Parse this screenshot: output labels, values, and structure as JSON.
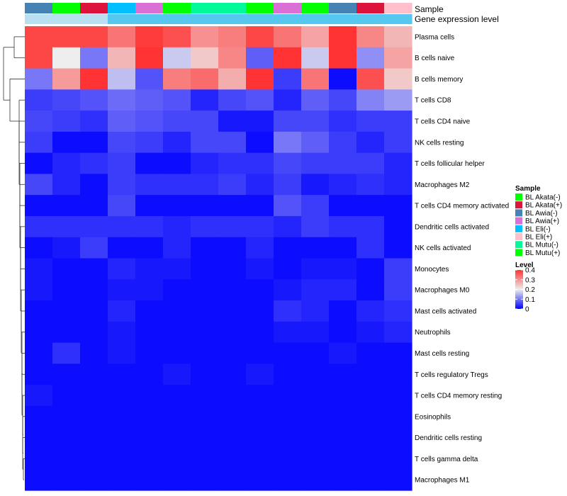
{
  "chart_data": {
    "type": "heatmap",
    "title": "",
    "row_labels": [
      "Plasma cells",
      "B cells naive",
      "B cells memory",
      "T cells CD8",
      "T cells CD4 naive",
      "NK cells resting",
      "T cells follicular helper",
      "Macrophages M2",
      "T cells CD4 memory activated",
      "Dendritic cells activated",
      "NK cells activated",
      "Monocytes",
      "Macrophages M0",
      "Mast cells activated",
      "Neutrophils",
      "Mast cells resting",
      "T cells regulatory  Tregs",
      "T cells CD4 memory resting",
      "Eosinophils",
      "Dendritic cells resting",
      "T cells gamma delta",
      "Macrophages M1"
    ],
    "column_samples": [
      "BL Awia(-)",
      "BL Mutu(+)",
      "BL Akata(+)",
      "BL Eli(-)",
      "BL Awia(+)",
      "BL Mutu(+)",
      "BL Mutu(-)",
      "BL Mutu(-)",
      "BL Mutu(+)",
      "BL Awia(+)",
      "BL Mutu(+)",
      "BL Awia(-)",
      "BL Akata(+)",
      "BL Eli(+)"
    ],
    "column_expression_levels": [
      0.15,
      0.15,
      0.15,
      0.3,
      0.3,
      0.3,
      0.3,
      0.3,
      0.3,
      0.3,
      0.3,
      0.3,
      0.3,
      0.3
    ],
    "values": [
      [
        0.38,
        0.38,
        0.38,
        0.33,
        0.39,
        0.37,
        0.3,
        0.32,
        0.38,
        0.33,
        0.28,
        0.4,
        0.31,
        0.26
      ],
      [
        0.38,
        0.2,
        0.1,
        0.26,
        0.4,
        0.17,
        0.24,
        0.31,
        0.08,
        0.4,
        0.17,
        0.4,
        0.12,
        0.28
      ],
      [
        0.1,
        0.29,
        0.4,
        0.16,
        0.07,
        0.32,
        0.34,
        0.27,
        0.4,
        0.05,
        0.33,
        0.01,
        0.37,
        0.24
      ],
      [
        0.05,
        0.06,
        0.07,
        0.09,
        0.08,
        0.07,
        0.03,
        0.06,
        0.07,
        0.03,
        0.08,
        0.06,
        0.11,
        0.13
      ],
      [
        0.06,
        0.05,
        0.04,
        0.08,
        0.07,
        0.06,
        0.06,
        0.02,
        0.02,
        0.06,
        0.06,
        0.04,
        0.05,
        0.05
      ],
      [
        0.05,
        0.01,
        0.01,
        0.06,
        0.05,
        0.03,
        0.06,
        0.06,
        0.01,
        0.1,
        0.08,
        0.05,
        0.03,
        0.05
      ],
      [
        0.01,
        0.03,
        0.04,
        0.05,
        0.01,
        0.01,
        0.03,
        0.04,
        0.04,
        0.06,
        0.05,
        0.05,
        0.05,
        0.03
      ],
      [
        0.06,
        0.03,
        0.01,
        0.05,
        0.04,
        0.04,
        0.04,
        0.05,
        0.03,
        0.05,
        0.02,
        0.03,
        0.04,
        0.03
      ],
      [
        0.01,
        0.01,
        0.01,
        0.06,
        0.01,
        0.01,
        0.01,
        0.01,
        0.01,
        0.07,
        0.05,
        0.01,
        0.01,
        0.01
      ],
      [
        0.04,
        0.04,
        0.04,
        0.04,
        0.04,
        0.03,
        0.04,
        0.04,
        0.04,
        0.03,
        0.05,
        0.04,
        0.04,
        0.01
      ],
      [
        0.01,
        0.02,
        0.05,
        0.01,
        0.01,
        0.03,
        0.01,
        0.01,
        0.03,
        0.01,
        0.01,
        0.01,
        0.04,
        0.01
      ],
      [
        0.02,
        0.01,
        0.01,
        0.03,
        0.02,
        0.02,
        0.01,
        0.01,
        0.02,
        0.01,
        0.02,
        0.02,
        0.01,
        0.05
      ],
      [
        0.02,
        0.01,
        0.01,
        0.02,
        0.02,
        0.01,
        0.01,
        0.01,
        0.01,
        0.02,
        0.03,
        0.03,
        0.01,
        0.05
      ],
      [
        0.01,
        0.01,
        0.01,
        0.03,
        0.01,
        0.01,
        0.01,
        0.01,
        0.01,
        0.04,
        0.03,
        0.01,
        0.03,
        0.04
      ],
      [
        0.01,
        0.01,
        0.01,
        0.02,
        0.01,
        0.01,
        0.01,
        0.01,
        0.01,
        0.02,
        0.02,
        0.01,
        0.02,
        0.03
      ],
      [
        0.01,
        0.04,
        0.01,
        0.02,
        0.01,
        0.01,
        0.01,
        0.01,
        0.01,
        0.01,
        0.01,
        0.02,
        0.01,
        0.01
      ],
      [
        0.01,
        0.01,
        0.01,
        0.01,
        0.01,
        0.02,
        0.01,
        0.01,
        0.02,
        0.01,
        0.01,
        0.01,
        0.01,
        0.01
      ],
      [
        0.02,
        0.01,
        0.01,
        0.01,
        0.01,
        0.01,
        0.01,
        0.01,
        0.01,
        0.01,
        0.01,
        0.01,
        0.01,
        0.01
      ],
      [
        0.01,
        0.01,
        0.01,
        0.01,
        0.01,
        0.01,
        0.01,
        0.01,
        0.01,
        0.01,
        0.01,
        0.01,
        0.01,
        0.01
      ],
      [
        0.01,
        0.01,
        0.01,
        0.01,
        0.01,
        0.01,
        0.01,
        0.01,
        0.01,
        0.01,
        0.01,
        0.01,
        0.01,
        0.01
      ],
      [
        0.01,
        0.01,
        0.01,
        0.01,
        0.01,
        0.01,
        0.01,
        0.01,
        0.01,
        0.01,
        0.01,
        0.01,
        0.01,
        0.01
      ],
      [
        0.01,
        0.01,
        0.01,
        0.01,
        0.01,
        0.01,
        0.01,
        0.01,
        0.01,
        0.01,
        0.01,
        0.01,
        0.01,
        0.01
      ]
    ],
    "annotation_labels": [
      "Sample",
      "Gene expression level"
    ],
    "legends": {
      "sample": {
        "title": "Sample",
        "entries": [
          {
            "label": "BL Akata(-)",
            "color": "#00ff00"
          },
          {
            "label": "BL Akata(+)",
            "color": "#dc143c"
          },
          {
            "label": "BL Awia(-)",
            "color": "#4682b4"
          },
          {
            "label": "BL Awia(+)",
            "color": "#da70d6"
          },
          {
            "label": "BL Eli(-)",
            "color": "#00bfff"
          },
          {
            "label": "BL Eli(+)",
            "color": "#ffc0cb"
          },
          {
            "label": "BL Mutu(-)",
            "color": "#00fa9a"
          },
          {
            "label": "BL Mutu(+)",
            "color": "#00ff00"
          }
        ]
      },
      "level": {
        "title": "Level",
        "ticks": [
          0.4,
          0.3,
          0.2,
          0.1,
          0
        ],
        "range": [
          0,
          0.4
        ],
        "colors": {
          "low": "#0000ff",
          "mid": "#eeeeee",
          "high": "#ff3333"
        }
      }
    },
    "expression_level_colors": {
      "low": "#b8e0f0",
      "high": "#56c8f0"
    },
    "dendrogram": "hierarchical clustering of rows"
  }
}
